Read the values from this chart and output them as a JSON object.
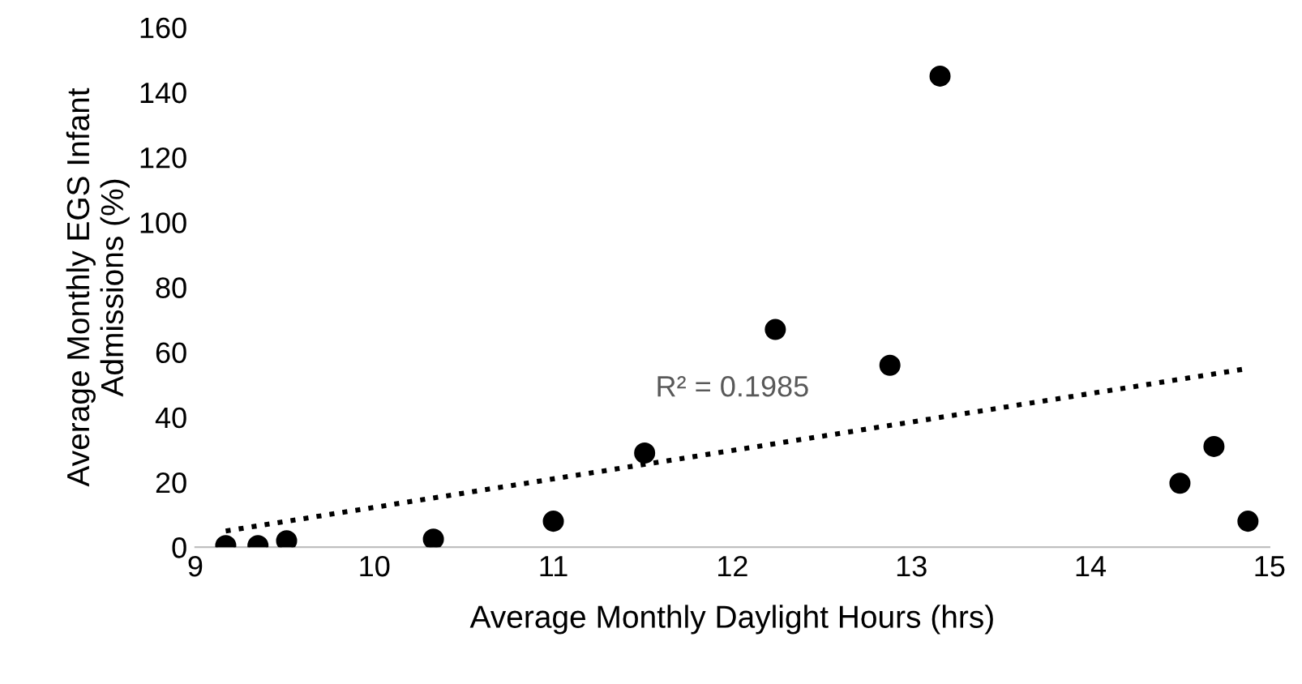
{
  "chart_data": {
    "type": "scatter",
    "xlabel": "Average Monthly Daylight Hours (hrs)",
    "ylabel": "Average Monthly EGS Infant\nAdmissions (%)",
    "xlim": [
      9,
      15
    ],
    "xticks": [
      9,
      10,
      11,
      12,
      13,
      14,
      15
    ],
    "ylim": [
      0,
      160
    ],
    "yticks": [
      0,
      20,
      40,
      60,
      80,
      100,
      120,
      140,
      160
    ],
    "grid": false,
    "legend": false,
    "series": [
      {
        "color": "#000000",
        "marker": "circle",
        "x": [
          9.17,
          9.35,
          9.51,
          10.33,
          11.0,
          11.51,
          12.24,
          12.88,
          13.16,
          14.5,
          14.69,
          14.88
        ],
        "values": [
          0.5,
          0.5,
          2,
          2.5,
          8,
          29,
          67,
          56,
          145,
          19.7,
          31,
          8
        ]
      },
      {
        "type": "line",
        "color": "#000000",
        "line_style": "dotted",
        "marker": "none",
        "x": [
          9.17,
          14.88
        ],
        "values": [
          5,
          55
        ]
      }
    ],
    "annotations": [
      "R² = 0.1985"
    ]
  }
}
